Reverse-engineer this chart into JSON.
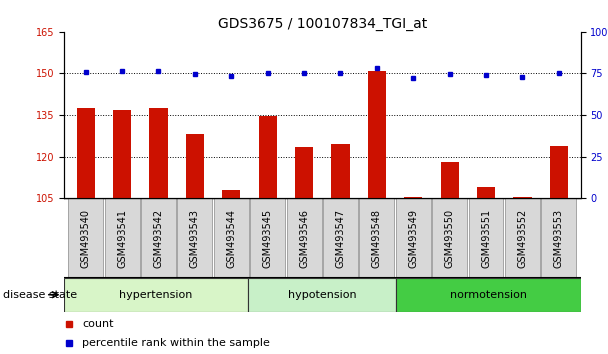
{
  "title": "GDS3675 / 100107834_TGI_at",
  "samples": [
    "GSM493540",
    "GSM493541",
    "GSM493542",
    "GSM493543",
    "GSM493544",
    "GSM493545",
    "GSM493546",
    "GSM493547",
    "GSM493548",
    "GSM493549",
    "GSM493550",
    "GSM493551",
    "GSM493552",
    "GSM493553"
  ],
  "counts": [
    137.5,
    137.0,
    137.5,
    128.0,
    108.0,
    134.5,
    123.5,
    124.5,
    151.0,
    105.5,
    118.0,
    109.0,
    105.5,
    124.0
  ],
  "percentiles": [
    76.0,
    76.5,
    76.5,
    74.5,
    73.5,
    75.0,
    75.0,
    75.5,
    78.0,
    72.5,
    74.5,
    74.0,
    73.0,
    75.5
  ],
  "ylim_left": [
    105,
    165
  ],
  "ylim_right": [
    0,
    100
  ],
  "yticks_left": [
    105,
    120,
    135,
    150,
    165
  ],
  "yticks_right": [
    0,
    25,
    50,
    75,
    100
  ],
  "groups": [
    {
      "label": "hypertension",
      "start": 0,
      "end": 4,
      "color": "#d8f5c8"
    },
    {
      "label": "hypotension",
      "start": 5,
      "end": 8,
      "color": "#c8f0c8"
    },
    {
      "label": "normotension",
      "start": 9,
      "end": 13,
      "color": "#44cc44"
    }
  ],
  "bar_color": "#cc1100",
  "dot_color": "#0000cc",
  "bar_width": 0.5,
  "grid_color": "#000000",
  "title_fontsize": 10,
  "tick_fontsize": 7,
  "label_fontsize": 8,
  "legend_fontsize": 8,
  "disease_state_label": "disease state",
  "legend_count": "count",
  "legend_percentile": "percentile rank within the sample"
}
